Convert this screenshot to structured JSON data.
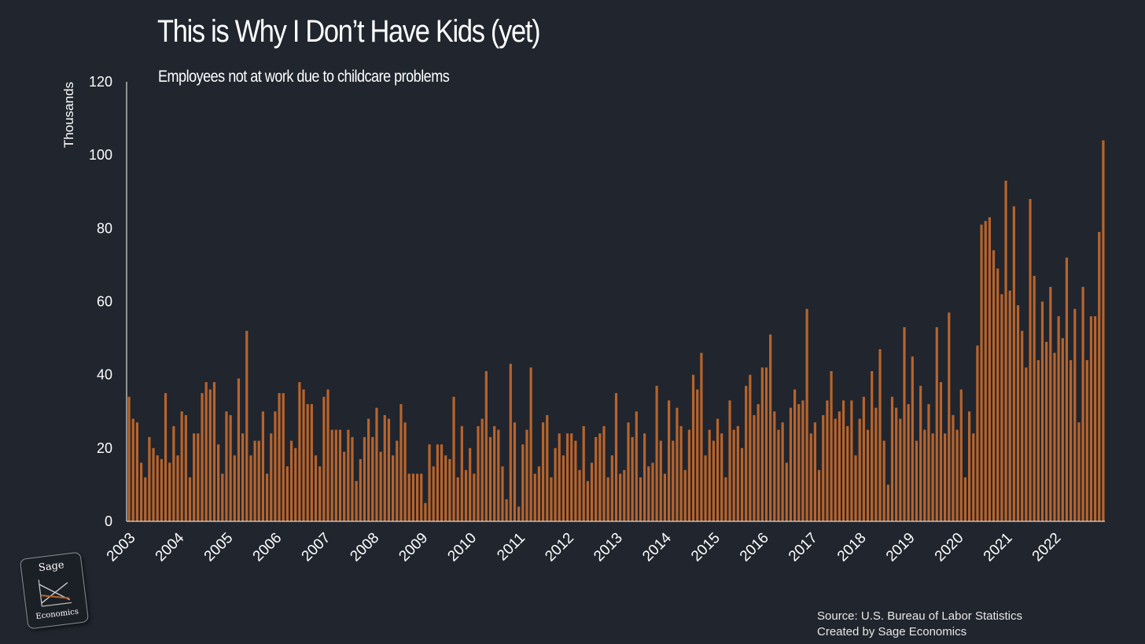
{
  "title": "This is Why I Don’t Have Kids (yet)",
  "subtitle": "Employees not at work due to childcare problems",
  "source_line": "Source: U.S. Bureau of Labor Statistics",
  "credit_line": "Created by Sage Economics",
  "logo": {
    "top": "Sage",
    "bottom": "Economics"
  },
  "colors": {
    "background": "#20252e",
    "bar": "#b8642c",
    "axis": "#ffffff",
    "text": "#ffffff"
  },
  "chart_data": {
    "type": "bar",
    "frequency": "monthly",
    "ylabel": "Thousands",
    "xlabel": "",
    "ylim": [
      0,
      120
    ],
    "yticks": [
      0,
      20,
      40,
      60,
      80,
      100,
      120
    ],
    "grid": false,
    "legend": "none",
    "start": "2003-01",
    "year_labels": [
      "2003",
      "2004",
      "2005",
      "2006",
      "2007",
      "2008",
      "2009",
      "2010",
      "2011",
      "2012",
      "2013",
      "2014",
      "2015",
      "2016",
      "2017",
      "2018",
      "2019",
      "2020",
      "2021",
      "2022"
    ],
    "values": [
      34,
      28,
      27,
      16,
      12,
      23,
      20,
      18,
      17,
      35,
      16,
      26,
      18,
      30,
      29,
      12,
      24,
      24,
      35,
      38,
      36,
      38,
      21,
      13,
      30,
      29,
      18,
      39,
      24,
      52,
      18,
      22,
      22,
      30,
      13,
      24,
      30,
      35,
      35,
      15,
      22,
      20,
      38,
      36,
      32,
      32,
      18,
      15,
      34,
      36,
      25,
      25,
      25,
      19,
      25,
      23,
      11,
      17,
      23,
      28,
      23,
      31,
      19,
      29,
      28,
      18,
      22,
      32,
      27,
      13,
      13,
      13,
      13,
      5,
      21,
      15,
      21,
      21,
      18,
      17,
      34,
      12,
      26,
      14,
      20,
      13,
      26,
      28,
      41,
      23,
      26,
      25,
      15,
      6,
      43,
      27,
      4,
      21,
      25,
      42,
      13,
      15,
      27,
      29,
      12,
      20,
      24,
      18,
      24,
      24,
      22,
      14,
      26,
      11,
      16,
      23,
      24,
      26,
      12,
      18,
      35,
      13,
      14,
      27,
      23,
      30,
      12,
      24,
      15,
      16,
      37,
      22,
      13,
      33,
      22,
      31,
      26,
      14,
      25,
      40,
      36,
      46,
      18,
      25,
      22,
      28,
      24,
      12,
      33,
      25,
      26,
      20,
      37,
      40,
      29,
      32,
      42,
      42,
      51,
      30,
      25,
      27,
      16,
      31,
      36,
      32,
      33,
      58,
      24,
      27,
      14,
      29,
      33,
      41,
      28,
      30,
      33,
      26,
      33,
      18,
      28,
      34,
      25,
      41,
      31,
      47,
      22,
      10,
      34,
      31,
      28,
      53,
      32,
      45,
      22,
      37,
      25,
      32,
      24,
      53,
      38,
      24,
      57,
      29,
      25,
      36,
      12,
      30,
      24,
      48,
      81,
      82,
      83,
      74,
      69,
      62,
      93,
      63,
      86,
      59,
      52,
      42,
      88,
      67,
      44,
      60,
      49,
      64,
      46,
      56,
      50,
      72,
      44,
      58,
      27,
      64,
      44,
      56,
      56,
      79,
      104
    ]
  }
}
